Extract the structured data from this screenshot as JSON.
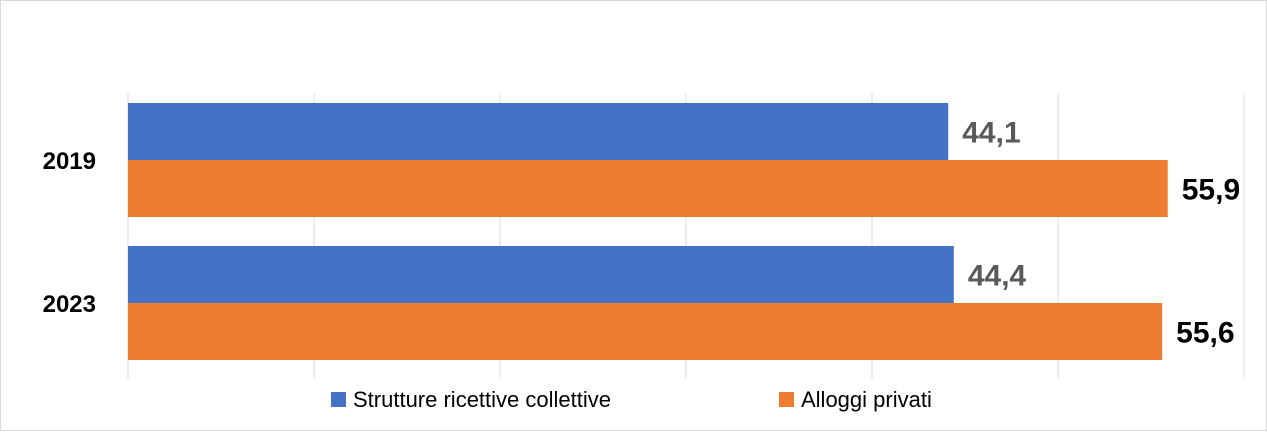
{
  "chart_data": {
    "type": "bar",
    "orientation": "horizontal",
    "categories": [
      "2019",
      "2023"
    ],
    "series": [
      {
        "name": "Strutture ricettive collettive",
        "values": [
          44.1,
          44.4
        ],
        "value_labels": [
          "44,1",
          "44,4"
        ],
        "color": "#4472C4",
        "label_color": "#595959"
      },
      {
        "name": "Alloggi privati",
        "values": [
          55.9,
          55.6
        ],
        "value_labels": [
          "55,9",
          "55,6"
        ],
        "color": "#ED7D31",
        "label_color": "#000000"
      }
    ],
    "xlim": [
      0,
      60
    ],
    "grid": "vertical",
    "legend": "bottom"
  }
}
